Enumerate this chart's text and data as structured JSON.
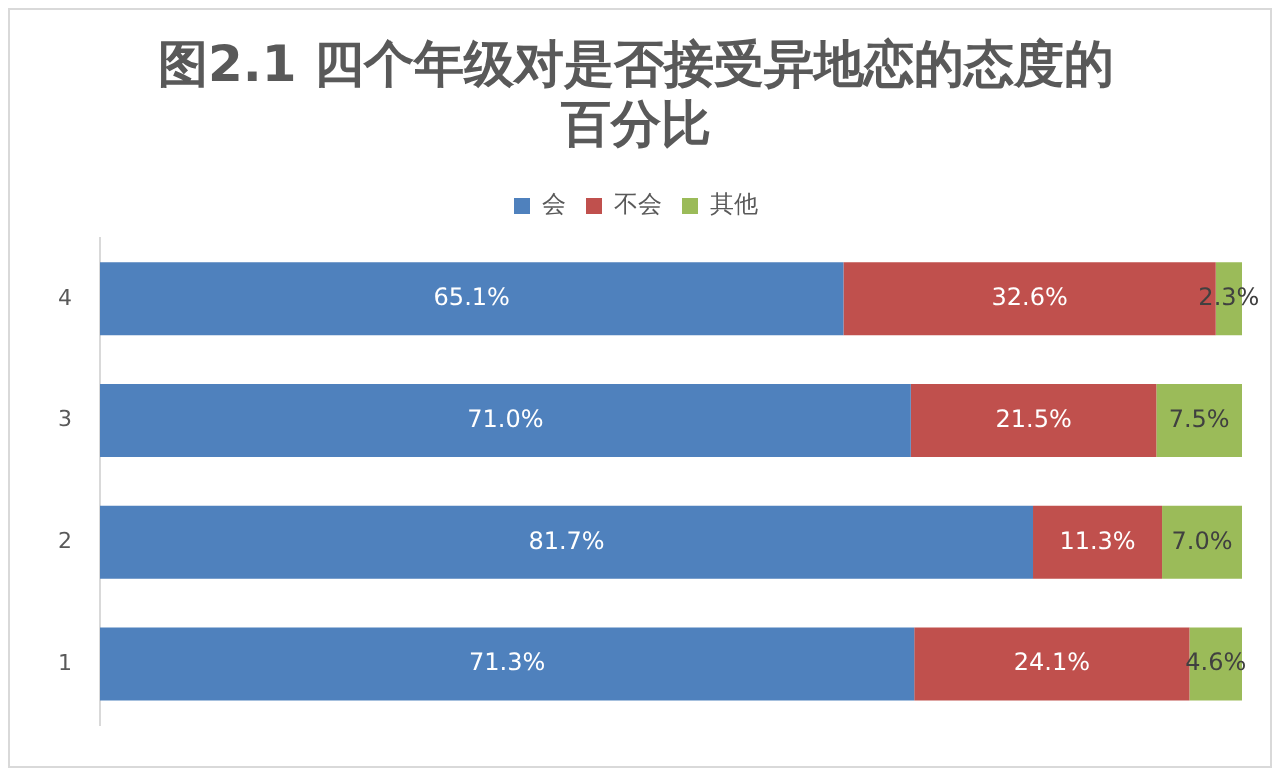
{
  "chart_data": {
    "type": "bar",
    "orientation": "horizontal",
    "stacked": true,
    "title": "图2.1 四个年级对是否接受异地恋的态度的百分比",
    "categories": [
      "4",
      "3",
      "2",
      "1"
    ],
    "series": [
      {
        "name": "会",
        "color": "#4f81bd",
        "values": [
          65.1,
          71.0,
          81.7,
          71.3
        ],
        "value_labels": [
          "65.1%",
          "71.0%",
          "81.7%",
          "71.3%"
        ]
      },
      {
        "name": "不会",
        "color": "#c0504d",
        "values": [
          32.6,
          21.5,
          11.3,
          24.1
        ],
        "value_labels": [
          "32.6%",
          "21.5%",
          "11.3%",
          "24.1%"
        ]
      },
      {
        "name": "其他",
        "color": "#9bbb59",
        "values": [
          2.3,
          7.5,
          7.0,
          4.6
        ],
        "value_labels": [
          "2.3%",
          "7.5%",
          "7.0%",
          "4.6%"
        ]
      }
    ],
    "legend": "top",
    "grid": false,
    "tick_labels": "y"
  }
}
